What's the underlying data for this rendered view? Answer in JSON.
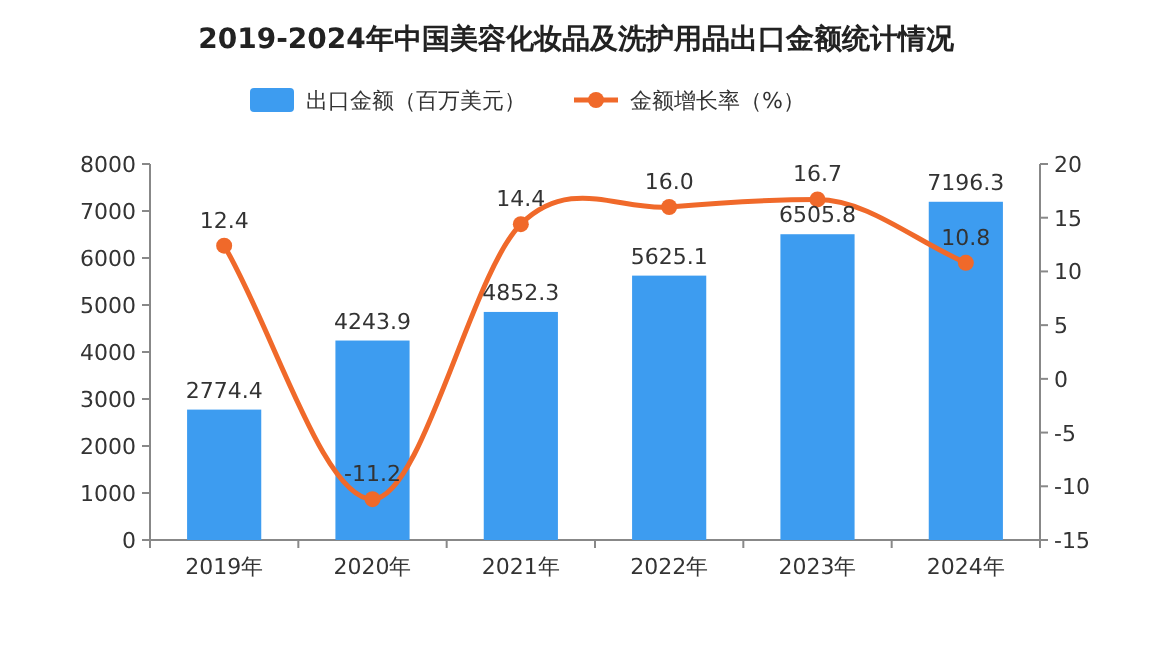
{
  "chart_data": {
    "type": "bar",
    "title": "2019-2024年中国美容化妆品及洗护用品出口金额统计情况",
    "categories": [
      "2019年",
      "2020年",
      "2021年",
      "2022年",
      "2023年",
      "2024年"
    ],
    "series": [
      {
        "name": "出口金额（百万美元）",
        "color": "#3d9cf0",
        "values": [
          2774.4,
          4243.9,
          4852.3,
          5625.1,
          6505.8,
          7196.3
        ]
      },
      {
        "name": "金额增长率（%）",
        "type": "line",
        "axis": "y2",
        "color": "#f0692a",
        "marker": "circle",
        "values": [
          12.4,
          -11.2,
          14.4,
          16.0,
          16.7,
          10.8
        ],
        "value_labels": [
          "12.4",
          "-11.2",
          "14.4",
          "16.0",
          "16.7",
          "10.8"
        ]
      }
    ],
    "ylim": [
      0,
      8000
    ],
    "yticks": [
      0,
      1000,
      2000,
      3000,
      4000,
      5000,
      6000,
      7000,
      8000
    ],
    "y2lim": [
      -15,
      20
    ],
    "y2ticks": [
      -15,
      -10,
      -5,
      0,
      5,
      10,
      15,
      20
    ],
    "legend": "top",
    "data_labels": true
  }
}
